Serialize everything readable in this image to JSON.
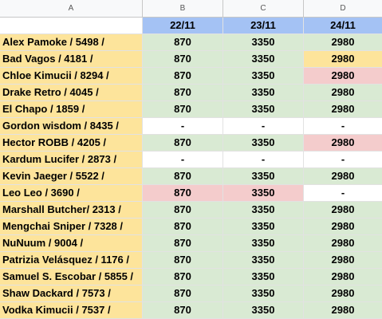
{
  "columns": [
    "A",
    "B",
    "C",
    "D"
  ],
  "header_row": {
    "a": "",
    "b": "22/11",
    "c": "23/11",
    "d": "24/11"
  },
  "colors": {
    "name_bg": "#fde49b",
    "date_header_bg": "#a4c2f4",
    "paid_green": "#d9ead3",
    "unpaid_red": "#f4cccc",
    "pending_yellow": "#fde49b",
    "empty_white": "#ffffff"
  },
  "rows": [
    {
      "name": "Alex Pamoke / 5498 /",
      "b": {
        "v": "870",
        "s": "green"
      },
      "c": {
        "v": "3350",
        "s": "green"
      },
      "d": {
        "v": "2980",
        "s": "green"
      }
    },
    {
      "name": "Bad Vagos / 4181 /",
      "b": {
        "v": "870",
        "s": "green"
      },
      "c": {
        "v": "3350",
        "s": "green"
      },
      "d": {
        "v": "2980",
        "s": "yellow"
      }
    },
    {
      "name": "Chloe Kimucii / 8294 /",
      "b": {
        "v": "870",
        "s": "green"
      },
      "c": {
        "v": "3350",
        "s": "green"
      },
      "d": {
        "v": "2980",
        "s": "red"
      }
    },
    {
      "name": "Drake Retro / 4045 /",
      "b": {
        "v": "870",
        "s": "green"
      },
      "c": {
        "v": "3350",
        "s": "green"
      },
      "d": {
        "v": "2980",
        "s": "green"
      }
    },
    {
      "name": "El Chapo / 1859 /",
      "b": {
        "v": "870",
        "s": "green"
      },
      "c": {
        "v": "3350",
        "s": "green"
      },
      "d": {
        "v": "2980",
        "s": "green"
      }
    },
    {
      "name": "Gordon wisdom / 8435 /",
      "b": {
        "v": "-",
        "s": "white"
      },
      "c": {
        "v": "-",
        "s": "white"
      },
      "d": {
        "v": "-",
        "s": "white"
      }
    },
    {
      "name": "Hector ROBB / 4205 /",
      "b": {
        "v": "870",
        "s": "green"
      },
      "c": {
        "v": "3350",
        "s": "green"
      },
      "d": {
        "v": "2980",
        "s": "red"
      }
    },
    {
      "name": "Kardum Lucifer / 2873 /",
      "b": {
        "v": "-",
        "s": "white"
      },
      "c": {
        "v": "-",
        "s": "white"
      },
      "d": {
        "v": "-",
        "s": "white"
      }
    },
    {
      "name": "Kevin Jaeger / 5522 /",
      "b": {
        "v": "870",
        "s": "green"
      },
      "c": {
        "v": "3350",
        "s": "green"
      },
      "d": {
        "v": "2980",
        "s": "green"
      }
    },
    {
      "name": "Leo Leo / 3690 /",
      "b": {
        "v": "870",
        "s": "red"
      },
      "c": {
        "v": "3350",
        "s": "red"
      },
      "d": {
        "v": "-",
        "s": "white"
      }
    },
    {
      "name": "Marshall Butcher/ 2313 /",
      "b": {
        "v": "870",
        "s": "green"
      },
      "c": {
        "v": "3350",
        "s": "green"
      },
      "d": {
        "v": "2980",
        "s": "green"
      }
    },
    {
      "name": "Mengchai Sniper / 7328 /",
      "b": {
        "v": "870",
        "s": "green"
      },
      "c": {
        "v": "3350",
        "s": "green"
      },
      "d": {
        "v": "2980",
        "s": "green"
      }
    },
    {
      "name": "NuNuum / 9004 /",
      "b": {
        "v": "870",
        "s": "green"
      },
      "c": {
        "v": "3350",
        "s": "green"
      },
      "d": {
        "v": "2980",
        "s": "green"
      }
    },
    {
      "name": "Patrizia Velásquez / 1176 /",
      "b": {
        "v": "870",
        "s": "green"
      },
      "c": {
        "v": "3350",
        "s": "green"
      },
      "d": {
        "v": "2980",
        "s": "green"
      }
    },
    {
      "name": "Samuel S. Escobar / 5855 /",
      "b": {
        "v": "870",
        "s": "green"
      },
      "c": {
        "v": "3350",
        "s": "green"
      },
      "d": {
        "v": "2980",
        "s": "green"
      }
    },
    {
      "name": "Shaw Dackard / 7573 /",
      "b": {
        "v": "870",
        "s": "green"
      },
      "c": {
        "v": "3350",
        "s": "green"
      },
      "d": {
        "v": "2980",
        "s": "green"
      }
    },
    {
      "name": "Vodka Kimucii / 7537 /",
      "b": {
        "v": "870",
        "s": "green"
      },
      "c": {
        "v": "3350",
        "s": "green"
      },
      "d": {
        "v": "2980",
        "s": "green"
      }
    }
  ]
}
